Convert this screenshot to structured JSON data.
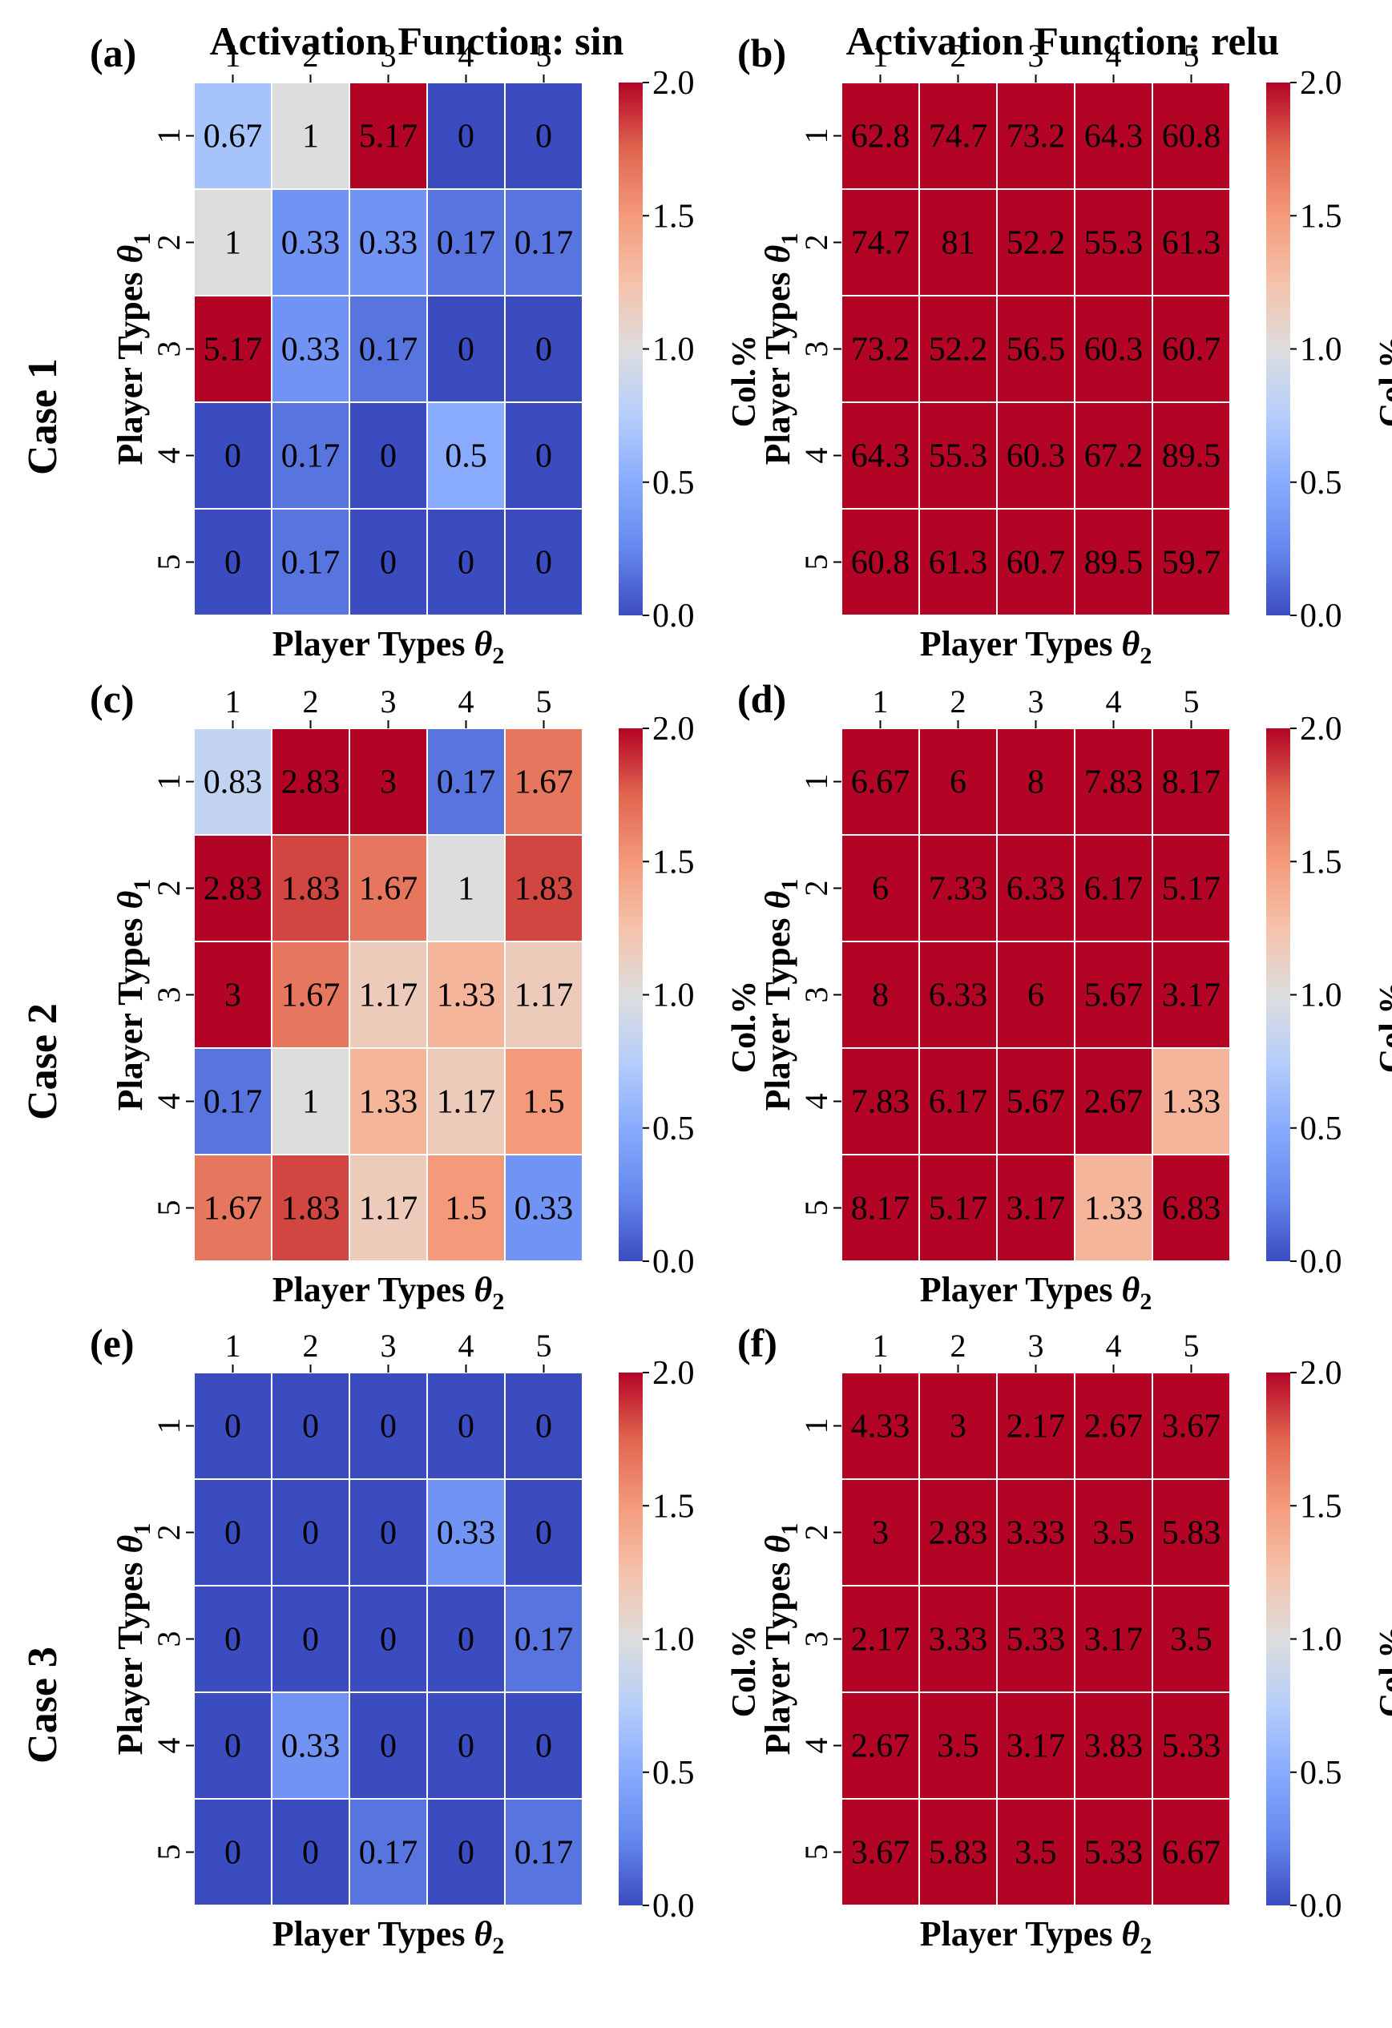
{
  "figure": {
    "column_titles": [
      "Activation Function: sin",
      "Activation Function: relu"
    ],
    "row_titles": [
      "Case 1",
      "Case 2",
      "Case 3"
    ],
    "colormap": {
      "name": "coolwarm",
      "low": "#3b4cc0",
      "mid": "#dddddd",
      "high": "#b40426",
      "cell_border": "#ffffff"
    }
  },
  "chart_data": [
    {
      "type": "heatmap",
      "panel": "(a)",
      "case": "Case 1",
      "activation": "sin",
      "xlabel": "Player Types θ2",
      "ylabel": "Player Types θ1",
      "x_categories": [
        "1",
        "2",
        "3",
        "4",
        "5"
      ],
      "y_categories": [
        "1",
        "2",
        "3",
        "4",
        "5"
      ],
      "values": [
        [
          0.67,
          1,
          5.17,
          0,
          0
        ],
        [
          1,
          0.33,
          0.33,
          0.17,
          0.17
        ],
        [
          5.17,
          0.33,
          0.17,
          0,
          0
        ],
        [
          0,
          0.17,
          0,
          0.5,
          0
        ],
        [
          0,
          0.17,
          0,
          0,
          0
        ]
      ],
      "colorbar": {
        "label": "Col.%",
        "vmin": 0.0,
        "vmax": 2.0,
        "ticks": [
          "0.0",
          "0.5",
          "1.0",
          "1.5",
          "2.0"
        ]
      }
    },
    {
      "type": "heatmap",
      "panel": "(b)",
      "case": "Case 1",
      "activation": "relu",
      "xlabel": "Player Types θ2",
      "ylabel": "Player Types θ1",
      "x_categories": [
        "1",
        "2",
        "3",
        "4",
        "5"
      ],
      "y_categories": [
        "1",
        "2",
        "3",
        "4",
        "5"
      ],
      "values": [
        [
          62.8,
          74.7,
          73.2,
          64.3,
          60.8
        ],
        [
          74.7,
          81,
          52.2,
          55.3,
          61.3
        ],
        [
          73.2,
          52.2,
          56.5,
          60.3,
          60.7
        ],
        [
          64.3,
          55.3,
          60.3,
          67.2,
          89.5
        ],
        [
          60.8,
          61.3,
          60.7,
          89.5,
          59.7
        ]
      ],
      "colorbar": {
        "label": "Col.%",
        "vmin": 0.0,
        "vmax": 2.0,
        "ticks": [
          "0.0",
          "0.5",
          "1.0",
          "1.5",
          "2.0"
        ]
      }
    },
    {
      "type": "heatmap",
      "panel": "(c)",
      "case": "Case 2",
      "activation": "sin",
      "xlabel": "Player Types θ2",
      "ylabel": "Player Types θ1",
      "x_categories": [
        "1",
        "2",
        "3",
        "4",
        "5"
      ],
      "y_categories": [
        "1",
        "2",
        "3",
        "4",
        "5"
      ],
      "values": [
        [
          0.83,
          2.83,
          3,
          0.17,
          1.67
        ],
        [
          2.83,
          1.83,
          1.67,
          1,
          1.83
        ],
        [
          3,
          1.67,
          1.17,
          1.33,
          1.17
        ],
        [
          0.17,
          1,
          1.33,
          1.17,
          1.5
        ],
        [
          1.67,
          1.83,
          1.17,
          1.5,
          0.33
        ]
      ],
      "colorbar": {
        "label": "Col.%",
        "vmin": 0.0,
        "vmax": 2.0,
        "ticks": [
          "0.0",
          "0.5",
          "1.0",
          "1.5",
          "2.0"
        ]
      }
    },
    {
      "type": "heatmap",
      "panel": "(d)",
      "case": "Case 2",
      "activation": "relu",
      "xlabel": "Player Types θ2",
      "ylabel": "Player Types θ1",
      "x_categories": [
        "1",
        "2",
        "3",
        "4",
        "5"
      ],
      "y_categories": [
        "1",
        "2",
        "3",
        "4",
        "5"
      ],
      "values": [
        [
          6.67,
          6,
          8,
          7.83,
          8.17
        ],
        [
          6,
          7.33,
          6.33,
          6.17,
          5.17
        ],
        [
          8,
          6.33,
          6,
          5.67,
          3.17
        ],
        [
          7.83,
          6.17,
          5.67,
          2.67,
          1.33
        ],
        [
          8.17,
          5.17,
          3.17,
          1.33,
          6.83
        ]
      ],
      "colorbar": {
        "label": "Col.%",
        "vmin": 0.0,
        "vmax": 2.0,
        "ticks": [
          "0.0",
          "0.5",
          "1.0",
          "1.5",
          "2.0"
        ]
      }
    },
    {
      "type": "heatmap",
      "panel": "(e)",
      "case": "Case 3",
      "activation": "sin",
      "xlabel": "Player Types θ2",
      "ylabel": "Player Types θ1",
      "x_categories": [
        "1",
        "2",
        "3",
        "4",
        "5"
      ],
      "y_categories": [
        "1",
        "2",
        "3",
        "4",
        "5"
      ],
      "values": [
        [
          0,
          0,
          0,
          0,
          0
        ],
        [
          0,
          0,
          0,
          0.33,
          0
        ],
        [
          0,
          0,
          0,
          0,
          0.17
        ],
        [
          0,
          0.33,
          0,
          0,
          0
        ],
        [
          0,
          0,
          0.17,
          0,
          0.17
        ]
      ],
      "colorbar": {
        "label": "Col.%",
        "vmin": 0.0,
        "vmax": 2.0,
        "ticks": [
          "0.0",
          "0.5",
          "1.0",
          "1.5",
          "2.0"
        ]
      }
    },
    {
      "type": "heatmap",
      "panel": "(f)",
      "case": "Case 3",
      "activation": "relu",
      "xlabel": "Player Types θ2",
      "ylabel": "Player Types θ1",
      "x_categories": [
        "1",
        "2",
        "3",
        "4",
        "5"
      ],
      "y_categories": [
        "1",
        "2",
        "3",
        "4",
        "5"
      ],
      "values": [
        [
          4.33,
          3,
          2.17,
          2.67,
          3.67
        ],
        [
          3,
          2.83,
          3.33,
          3.5,
          5.83
        ],
        [
          2.17,
          3.33,
          5.33,
          3.17,
          3.5
        ],
        [
          2.67,
          3.5,
          3.17,
          3.83,
          5.33
        ],
        [
          3.67,
          5.83,
          3.5,
          5.33,
          6.67
        ]
      ],
      "colorbar": {
        "label": "Col.%",
        "vmin": 0.0,
        "vmax": 2.0,
        "ticks": [
          "0.0",
          "0.5",
          "1.0",
          "1.5",
          "2.0"
        ]
      }
    }
  ]
}
